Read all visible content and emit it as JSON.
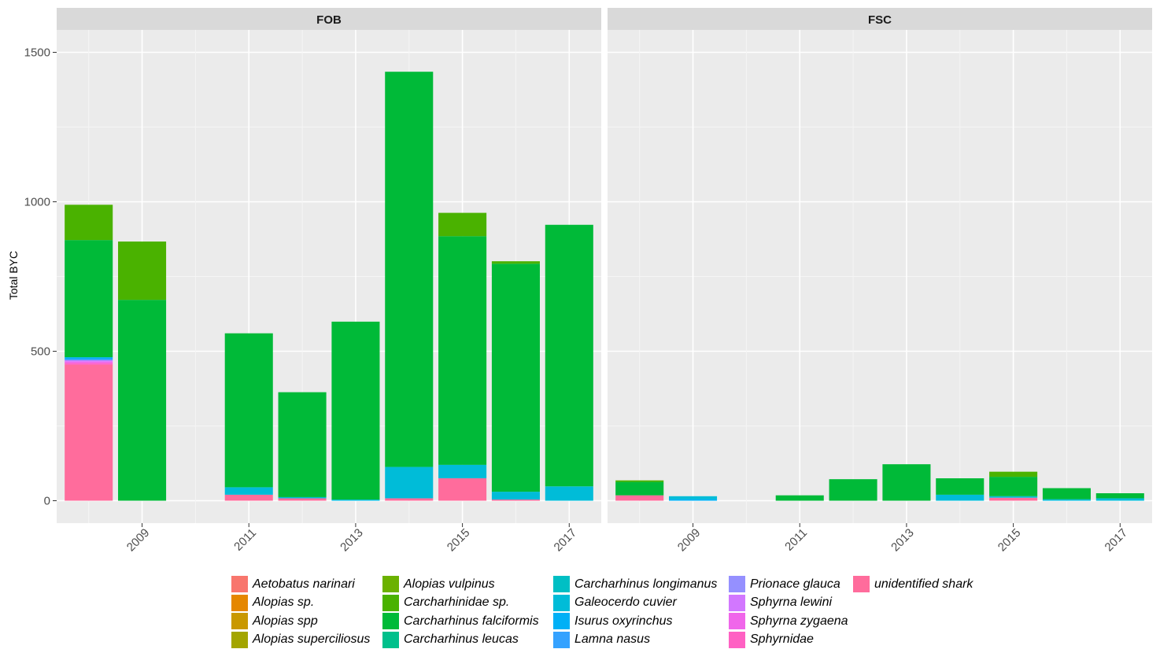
{
  "chart_data": {
    "type": "bar",
    "stacked": true,
    "ylabel": "Total BYC",
    "xlabel": "",
    "ylim": [
      -75,
      1575
    ],
    "xlim": [
      2007.4,
      2017.6
    ],
    "yticks": [
      0,
      500,
      1000,
      1500
    ],
    "xticks": [
      2009,
      2011,
      2013,
      2015,
      2017
    ],
    "grid": true,
    "legend_position": "bottom",
    "panels": [
      {
        "title": "FOB",
        "bars": [
          {
            "x": 2008,
            "segments": [
              {
                "species": "unidentified shark",
                "value": 455
              },
              {
                "species": "Sphyrnidae",
                "value": 5
              },
              {
                "species": "Sphyrna zygaena",
                "value": 5
              },
              {
                "species": "Sphyrna lewini",
                "value": 5
              },
              {
                "species": "Lamna nasus",
                "value": 5
              },
              {
                "species": "Isurus oxyrinchus",
                "value": 5
              },
              {
                "species": "Carcharhinus falciformis",
                "value": 392
              },
              {
                "species": "Carcharhinidae sp.",
                "value": 118
              }
            ]
          },
          {
            "x": 2009,
            "segments": [
              {
                "species": "Carcharhinus falciformis",
                "value": 672
              },
              {
                "species": "Carcharhinidae sp.",
                "value": 195
              }
            ]
          },
          {
            "x": 2011,
            "segments": [
              {
                "species": "unidentified shark",
                "value": 20
              },
              {
                "species": "Galeocerdo cuvier",
                "value": 25
              },
              {
                "species": "Carcharhinus falciformis",
                "value": 515
              }
            ]
          },
          {
            "x": 2012,
            "segments": [
              {
                "species": "unidentified shark",
                "value": 8
              },
              {
                "species": "Galeocerdo cuvier",
                "value": 4
              },
              {
                "species": "Carcharhinus falciformis",
                "value": 351
              }
            ]
          },
          {
            "x": 2013,
            "segments": [
              {
                "species": "Galeocerdo cuvier",
                "value": 4
              },
              {
                "species": "Carcharhinus falciformis",
                "value": 595
              }
            ]
          },
          {
            "x": 2014,
            "segments": [
              {
                "species": "unidentified shark",
                "value": 8
              },
              {
                "species": "Galeocerdo cuvier",
                "value": 105
              },
              {
                "species": "Carcharhinus falciformis",
                "value": 1322
              }
            ]
          },
          {
            "x": 2015,
            "segments": [
              {
                "species": "unidentified shark",
                "value": 75
              },
              {
                "species": "Galeocerdo cuvier",
                "value": 45
              },
              {
                "species": "Carcharhinus falciformis",
                "value": 765
              },
              {
                "species": "Carcharhinidae sp.",
                "value": 78
              }
            ]
          },
          {
            "x": 2016,
            "segments": [
              {
                "species": "unidentified shark",
                "value": 4
              },
              {
                "species": "Galeocerdo cuvier",
                "value": 26
              },
              {
                "species": "Carcharhinus falciformis",
                "value": 763
              },
              {
                "species": "Carcharhinidae sp.",
                "value": 8
              }
            ]
          },
          {
            "x": 2017,
            "segments": [
              {
                "species": "Galeocerdo cuvier",
                "value": 48
              },
              {
                "species": "Carcharhinus falciformis",
                "value": 875
              }
            ]
          }
        ]
      },
      {
        "title": "FSC",
        "bars": [
          {
            "x": 2008,
            "segments": [
              {
                "species": "unidentified shark",
                "value": 18
              },
              {
                "species": "Carcharhinus falciformis",
                "value": 45
              },
              {
                "species": "Carcharhinidae sp.",
                "value": 5
              }
            ]
          },
          {
            "x": 2009,
            "segments": [
              {
                "species": "Isurus oxyrinchus",
                "value": 5
              },
              {
                "species": "Galeocerdo cuvier",
                "value": 10
              }
            ]
          },
          {
            "x": 2011,
            "segments": [
              {
                "species": "Carcharhinus falciformis",
                "value": 18
              }
            ]
          },
          {
            "x": 2012,
            "segments": [
              {
                "species": "Carcharhinus falciformis",
                "value": 72
              }
            ]
          },
          {
            "x": 2013,
            "segments": [
              {
                "species": "Carcharhinus falciformis",
                "value": 122
              }
            ]
          },
          {
            "x": 2014,
            "segments": [
              {
                "species": "Galeocerdo cuvier",
                "value": 20
              },
              {
                "species": "Carcharhinus falciformis",
                "value": 55
              }
            ]
          },
          {
            "x": 2015,
            "segments": [
              {
                "species": "unidentified shark",
                "value": 10
              },
              {
                "species": "Galeocerdo cuvier",
                "value": 5
              },
              {
                "species": "Carcharhinus falciformis",
                "value": 65
              },
              {
                "species": "Carcharhinidae sp.",
                "value": 17
              }
            ]
          },
          {
            "x": 2016,
            "segments": [
              {
                "species": "Galeocerdo cuvier",
                "value": 5
              },
              {
                "species": "Carcharhinus falciformis",
                "value": 37
              }
            ]
          },
          {
            "x": 2017,
            "segments": [
              {
                "species": "Galeocerdo cuvier",
                "value": 8
              },
              {
                "species": "Carcharhinus falciformis",
                "value": 17
              }
            ]
          }
        ]
      }
    ],
    "legend": [
      {
        "name": "Aetobatus narinari",
        "color": "#F8766D"
      },
      {
        "name": "Alopias sp.",
        "color": "#E58700"
      },
      {
        "name": "Alopias spp",
        "color": "#C99800"
      },
      {
        "name": "Alopias superciliosus",
        "color": "#A3A500"
      },
      {
        "name": "Alopias vulpinus",
        "color": "#6BB100"
      },
      {
        "name": "Carcharhinidae sp.",
        "color": "#4AB200"
      },
      {
        "name": "Carcharhinus falciformis",
        "color": "#00BA38"
      },
      {
        "name": "Carcharhinus leucas",
        "color": "#00C08B"
      },
      {
        "name": "Carcharhinus longimanus",
        "color": "#00BFC4"
      },
      {
        "name": "Galeocerdo cuvier",
        "color": "#00BCD8"
      },
      {
        "name": "Isurus oxyrinchus",
        "color": "#00B0F6"
      },
      {
        "name": "Lamna nasus",
        "color": "#35A2FF"
      },
      {
        "name": "Prionace glauca",
        "color": "#9590FF"
      },
      {
        "name": "Sphyrna lewini",
        "color": "#D277FF"
      },
      {
        "name": "Sphyrna zygaena",
        "color": "#F066EA"
      },
      {
        "name": "Sphyrnidae",
        "color": "#FF61C3"
      },
      {
        "name": "unidentified shark",
        "color": "#FF6C9C"
      }
    ]
  }
}
